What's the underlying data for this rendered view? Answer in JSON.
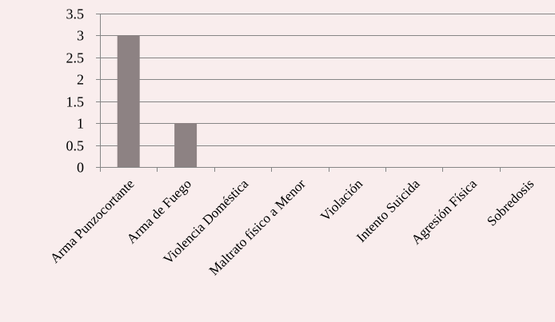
{
  "chart_data": {
    "type": "bar",
    "categories": [
      "Arma Punzocortante",
      "Arma de Fuego",
      "Violencia Doméstica",
      "Maltrato físico a Menor",
      "Violación",
      "Intento Suicida",
      "Agresión Física",
      "Sobredosis"
    ],
    "values": [
      3,
      1,
      0,
      0,
      0,
      0,
      0,
      0
    ],
    "ylim": [
      0,
      3.5
    ],
    "y_ticks": [
      "0",
      "0.5",
      "1",
      "1.5",
      "2",
      "2.5",
      "3",
      "3.5"
    ],
    "y_tick_values": [
      0,
      0.5,
      1,
      1.5,
      2,
      2.5,
      3,
      3.5
    ],
    "grid": true,
    "legend": "none",
    "title": "",
    "xlabel": "",
    "ylabel": ""
  },
  "colors": {
    "background": "#f9eded",
    "bar": "#8d8283",
    "gridline": "#868686",
    "axis": "#868686",
    "text": "#000000"
  }
}
